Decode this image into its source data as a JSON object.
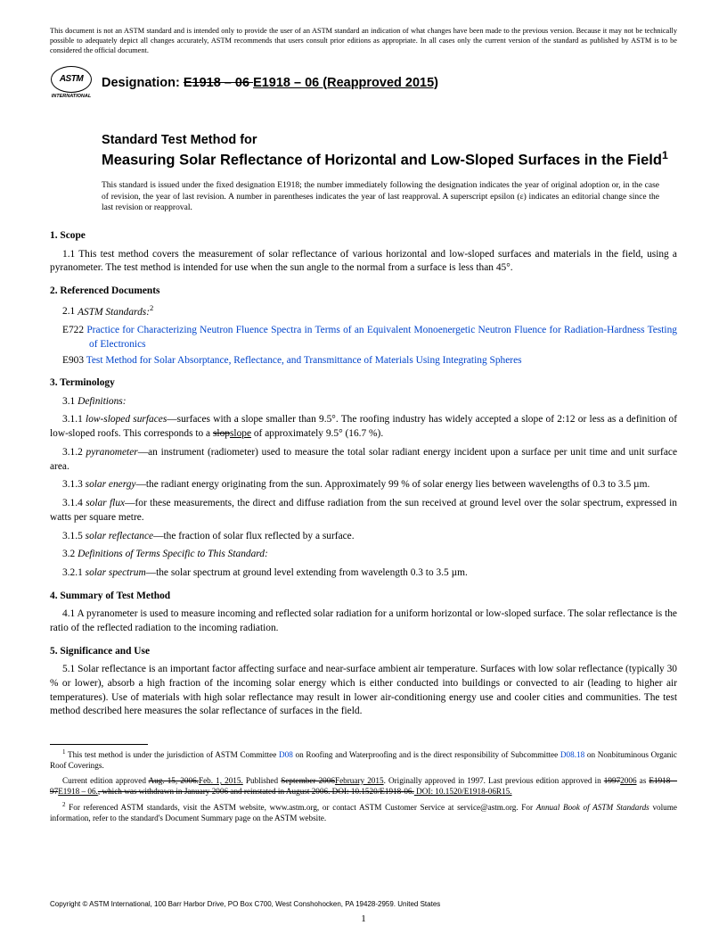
{
  "disclaimer": "This document is not an ASTM standard and is intended only to provide the user of an ASTM standard an indication of what changes have been made to the previous version. Because it may not be technically possible to adequately depict all changes accurately, ASTM recommends that users consult prior editions as appropriate. In all cases only the current version of the standard as published by ASTM is to be considered the official document.",
  "logo": {
    "text": "ASTM",
    "subtext": "INTERNATIONAL"
  },
  "designation": {
    "label": "Designation: ",
    "strike": "E1918 – 06 ",
    "underline": "E1918 – 06 (Reapproved 2015)"
  },
  "title": {
    "line1": "Standard Test Method for",
    "line2": "Measuring Solar Reflectance of Horizontal and Low-Sloped Surfaces in the Field",
    "sup": "1"
  },
  "issue_note": "This standard is issued under the fixed designation E1918; the number immediately following the designation indicates the year of original adoption or, in the case of revision, the year of last revision. A number in parentheses indicates the year of last reapproval. A superscript epsilon (ε) indicates an editorial change since the last revision or reapproval.",
  "s1": {
    "heading": "1.  Scope",
    "p1_num": "1.1  ",
    "p1": "This test method covers the measurement of solar reflectance of various horizontal and low-sloped surfaces and materials in the field, using a pyranometer. The test method is intended for use when the sun angle to the normal from a surface is less than 45°."
  },
  "s2": {
    "heading": "2.  Referenced Documents",
    "p1_num": "2.1  ",
    "p1_ital": "ASTM Standards:",
    "p1_sup": "2",
    "e722_label": "E722 ",
    "e722": "Practice for Characterizing Neutron Fluence Spectra in Terms of an Equivalent Monoenergetic Neutron Fluence for Radiation-Hardness Testing of Electronics",
    "e903_label": "E903 ",
    "e903": "Test Method for Solar Absorptance, Reflectance, and Transmittance of Materials Using Integrating Spheres"
  },
  "s3": {
    "heading": "3.  Terminology",
    "p31_num": "3.1  ",
    "p31": "Definitions:",
    "p311_num": "3.1.1  ",
    "p311_term": "low-sloped surfaces",
    "p311_a": "—surfaces with a slope smaller than 9.5°. The roofing industry has widely accepted a slope of 2:12 or less as a definition of low-sloped roofs. This corresponds to a ",
    "p311_strike": "slop",
    "p311_ul": "slope",
    "p311_b": " of approximately 9.5° (16.7 %).",
    "p312_num": "3.1.2  ",
    "p312_term": "pyranometer",
    "p312": "—an instrument (radiometer) used to measure the total solar radiant energy incident upon a surface per unit time and unit surface area.",
    "p313_num": "3.1.3  ",
    "p313_term": "solar energy",
    "p313": "—the radiant energy originating from the sun. Approximately 99 % of solar energy lies between wavelengths of 0.3 to 3.5 µm.",
    "p314_num": "3.1.4  ",
    "p314_term": "solar flux",
    "p314": "—for these measurements, the direct and diffuse radiation from the sun received at ground level over the solar spectrum, expressed in watts per square metre.",
    "p315_num": "3.1.5  ",
    "p315_term": "solar reflectance",
    "p315": "—the fraction of solar flux reflected by a surface.",
    "p32_num": "3.2  ",
    "p32": "Definitions of Terms Specific to This Standard:",
    "p321_num": "3.2.1  ",
    "p321_term": "solar spectrum",
    "p321": "—the solar spectrum at ground level extending from wavelength 0.3 to 3.5 µm."
  },
  "s4": {
    "heading": "4.  Summary of Test Method",
    "p1_num": "4.1  ",
    "p1": "A pyranometer is used to measure incoming and reflected solar radiation for a uniform horizontal or low-sloped surface. The solar reflectance is the ratio of the reflected radiation to the incoming radiation."
  },
  "s5": {
    "heading": "5.  Significance and Use",
    "p1_num": "5.1  ",
    "p1": "Solar reflectance is an important factor affecting surface and near-surface ambient air temperature. Surfaces with low solar reflectance (typically 30 % or lower), absorb a high fraction of the incoming solar energy which is either conducted into buildings or convected to air (leading to higher air temperatures). Use of materials with high solar reflectance may result in lower air-conditioning energy use and cooler cities and communities. The test method described here measures the solar reflectance of surfaces in the field."
  },
  "fn1": {
    "sup": "1",
    "a": " This test method is under the jurisdiction of ASTM Committee ",
    "link1": "D08",
    "b": " on Roofing and Waterproofing and is the direct responsibility of Subcommittee ",
    "link2": "D08.18",
    "c": " on Nonbituminous Organic Roof Coverings.",
    "d": "Current edition approved ",
    "strike1": "Aug. 15, 2006.",
    "ul1": "Feb. 1, 2015.",
    "e": " Published ",
    "strike2": "September 2006",
    "ul2": "February 2015",
    "f": ". Originally approved in 1997. Last previous edition approved in ",
    "strike3": "1997",
    "ul3": "2006",
    "g": " as ",
    "strike4": "E1918 – 97",
    "ul4": "E1918 – 06.",
    "strike5": ", which was withdrawn in January 2006 and reinstated in August 2006. DOI: 10.1520/E1918-06.",
    "ul5": " DOI: 10.1520/E1918-06R15."
  },
  "fn2": {
    "sup": "2",
    "a": " For referenced ASTM standards, visit the ASTM website, www.astm.org, or contact ASTM Customer Service at service@astm.org. For ",
    "ital": "Annual Book of ASTM Standards",
    "b": " volume information, refer to the standard's Document Summary page on the ASTM website."
  },
  "copyright": "Copyright © ASTM International, 100 Barr Harbor Drive, PO Box C700, West Conshohocken, PA 19428-2959. United States",
  "pagenum": "1"
}
